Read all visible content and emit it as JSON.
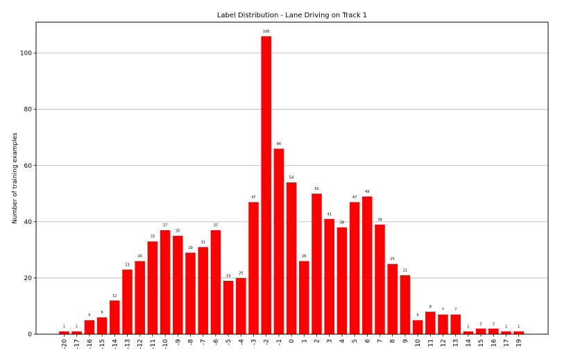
{
  "chart_data": {
    "type": "bar",
    "title": "Label Distribution - Lane Driving on Track 1",
    "xlabel": "",
    "ylabel": "Number of training examples",
    "categories": [
      "-20",
      "-17",
      "-16",
      "-15",
      "-14",
      "-13",
      "-12",
      "-11",
      "-10",
      "-9",
      "-8",
      "-7",
      "-6",
      "-5",
      "-4",
      "-3",
      "-2",
      "-1",
      "0",
      "1",
      "2",
      "3",
      "4",
      "5",
      "6",
      "7",
      "8",
      "9",
      "10",
      "11",
      "12",
      "13",
      "14",
      "15",
      "16",
      "17",
      "19"
    ],
    "values": [
      1,
      1,
      5,
      6,
      12,
      23,
      26,
      33,
      37,
      35,
      29,
      31,
      37,
      19,
      20,
      47,
      106,
      66,
      54,
      26,
      50,
      41,
      38,
      47,
      49,
      39,
      25,
      21,
      5,
      8,
      7,
      7,
      1,
      2,
      2,
      1,
      1
    ],
    "ylim": [
      0,
      111
    ],
    "yticks": [
      0,
      20,
      40,
      60,
      80,
      100
    ],
    "grid": "horizontal",
    "bar_color": "#ff0000",
    "grid_color": "#b0b0b0",
    "axis_color": "#000000"
  }
}
